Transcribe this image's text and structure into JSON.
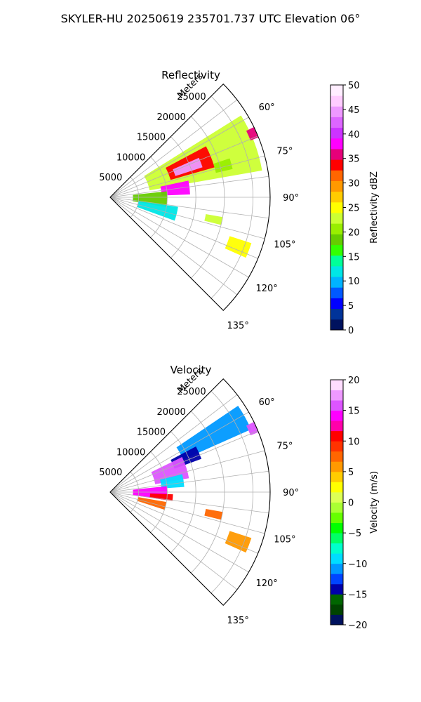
{
  "figure_title": "SKYLER-HU  20250619  235701.737 UTC Elevation 06°",
  "colors": {
    "grid": "#b0b0b0",
    "refl_cmap": [
      "#00125e",
      "#003399",
      "#0000ff",
      "#0059ff",
      "#00b3ff",
      "#00e6e6",
      "#00ff99",
      "#33ff00",
      "#66cc00",
      "#99ee00",
      "#ccff33",
      "#ffff00",
      "#ffcc00",
      "#ff9900",
      "#ff6600",
      "#ff0000",
      "#e6007a",
      "#ff00ff",
      "#cc33ff",
      "#dd66ff",
      "#ee99ff",
      "#ffccff",
      "#ffeeff"
    ],
    "vel_cmap": [
      "#00125e",
      "#004400",
      "#006600",
      "#0000aa",
      "#0044ff",
      "#0099ff",
      "#00ddff",
      "#00ffcc",
      "#00ff66",
      "#00ff00",
      "#66ff00",
      "#aaff33",
      "#ddff55",
      "#ffff00",
      "#ffcc00",
      "#ff9900",
      "#ff6600",
      "#ff3300",
      "#ff0000",
      "#ff00aa",
      "#ff00ff",
      "#dd55ff",
      "#ee99ff",
      "#ffddff"
    ]
  },
  "chart_data": [
    {
      "type": "heatmap",
      "projection": "polar-sector",
      "title": "Reflectivity",
      "radial_label": "Meters",
      "radial_ticks": [
        5000,
        10000,
        15000,
        20000,
        25000
      ],
      "radial_tick_labels": [
        "5000",
        "10000",
        "15000",
        "20000",
        "25000"
      ],
      "theta_range": [
        45,
        135
      ],
      "theta_ticks": [
        60,
        75,
        90,
        105,
        120,
        135
      ],
      "theta_tick_labels": [
        "60°",
        "75°",
        "90°",
        "105°",
        "120°",
        "135°"
      ],
      "r_max": 28000,
      "grid": true,
      "colorbar": {
        "label": "Reflectivity dBZ",
        "range": [
          0,
          50
        ],
        "ticks": [
          0,
          5,
          10,
          15,
          20,
          25,
          30,
          35,
          40,
          45,
          50
        ],
        "tick_labels": [
          "0",
          "5",
          "10",
          "15",
          "20",
          "25",
          "30",
          "35",
          "40",
          "45",
          "50"
        ]
      },
      "echo_regions": [
        {
          "theta": [
            58,
            80
          ],
          "r": [
            7000,
            27000
          ],
          "value": 22
        },
        {
          "theta": [
            62,
            74
          ],
          "r": [
            11000,
            19000
          ],
          "value": 34
        },
        {
          "theta": [
            66,
            72
          ],
          "r": [
            12000,
            17000
          ],
          "value": 44
        },
        {
          "theta": [
            78,
            88
          ],
          "r": [
            9000,
            14000
          ],
          "value": 38
        },
        {
          "theta": [
            84,
            100
          ],
          "r": [
            4000,
            10000
          ],
          "value": 18
        },
        {
          "theta": [
            98,
            110
          ],
          "r": [
            5000,
            12000
          ],
          "value": 12
        },
        {
          "theta": [
            64,
            68
          ],
          "r": [
            26500,
            28000
          ],
          "value": 36
        },
        {
          "theta": [
            72,
            77
          ],
          "r": [
            19000,
            22000
          ],
          "value": 20
        },
        {
          "theta": [
            100,
            104
          ],
          "r": [
            17000,
            20000
          ],
          "value": 22
        },
        {
          "theta": [
            108,
            114
          ],
          "r": [
            22000,
            26000
          ],
          "value": 24
        }
      ]
    },
    {
      "type": "heatmap",
      "projection": "polar-sector",
      "title": "Velocity",
      "radial_label": "Meters",
      "radial_ticks": [
        5000,
        10000,
        15000,
        20000,
        25000
      ],
      "radial_tick_labels": [
        "5000",
        "10000",
        "15000",
        "20000",
        "25000"
      ],
      "theta_range": [
        45,
        135
      ],
      "theta_ticks": [
        60,
        75,
        90,
        105,
        120,
        135
      ],
      "theta_tick_labels": [
        "60°",
        "75°",
        "90°",
        "105°",
        "120°",
        "135°"
      ],
      "r_max": 28000,
      "grid": true,
      "colorbar": {
        "label": "Velocity (m/s)",
        "range": [
          -20,
          20
        ],
        "ticks": [
          -20,
          -15,
          -10,
          -5,
          0,
          5,
          10,
          15,
          20
        ],
        "tick_labels": [
          "−20",
          "−15",
          "−10",
          "−5",
          "0",
          "5",
          "10",
          "15",
          "20"
        ]
      },
      "echo_regions": [
        {
          "theta": [
            56,
            66
          ],
          "r": [
            14000,
            27000
          ],
          "value": -11
        },
        {
          "theta": [
            62,
            70
          ],
          "r": [
            12000,
            17000
          ],
          "value": -14
        },
        {
          "theta": [
            64,
            80
          ],
          "r": [
            8000,
            14000
          ],
          "value": 15
        },
        {
          "theta": [
            76,
            86
          ],
          "r": [
            9000,
            13000
          ],
          "value": -10
        },
        {
          "theta": [
            84,
            98
          ],
          "r": [
            4000,
            10000
          ],
          "value": 14
        },
        {
          "theta": [
            92,
            98
          ],
          "r": [
            7000,
            11000
          ],
          "value": 10
        },
        {
          "theta": [
            100,
            108
          ],
          "r": [
            5000,
            10000
          ],
          "value": 8
        },
        {
          "theta": [
            64,
            68
          ],
          "r": [
            26500,
            28000
          ],
          "value": 16
        },
        {
          "theta": [
            100,
            104
          ],
          "r": [
            17000,
            20000
          ],
          "value": 7
        },
        {
          "theta": [
            108,
            114
          ],
          "r": [
            22000,
            26000
          ],
          "value": 6
        }
      ]
    }
  ]
}
